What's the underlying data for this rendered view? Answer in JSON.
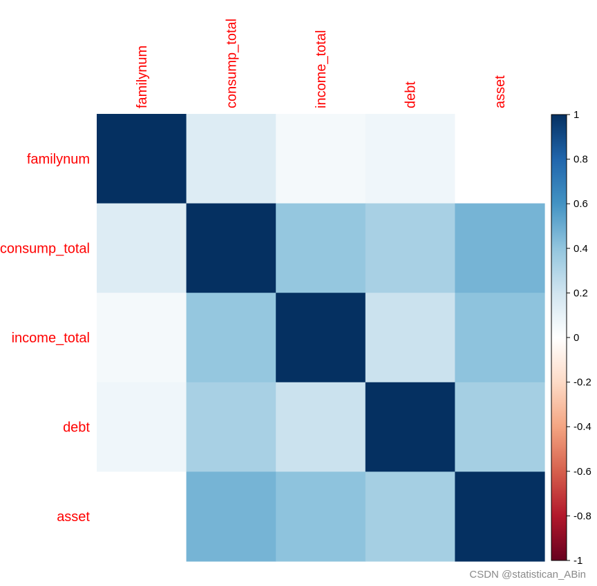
{
  "chart_data": {
    "type": "heatmap",
    "variables": [
      "familynum",
      "consump_total",
      "income_total",
      "debt",
      "asset"
    ],
    "matrix": [
      [
        1.0,
        0.15,
        0.05,
        0.07,
        0.0
      ],
      [
        0.15,
        1.0,
        0.39,
        0.33,
        0.47
      ],
      [
        0.05,
        0.39,
        1.0,
        0.22,
        0.41
      ],
      [
        0.07,
        0.33,
        0.22,
        1.0,
        0.34
      ],
      [
        0.0,
        0.47,
        0.41,
        0.34,
        1.0
      ]
    ],
    "color_scale": {
      "min": -1,
      "max": 1,
      "stops": [
        {
          "value": -1.0,
          "color": "#67001f"
        },
        {
          "value": -0.8,
          "color": "#b2182b"
        },
        {
          "value": -0.6,
          "color": "#d6604d"
        },
        {
          "value": -0.4,
          "color": "#f4a582"
        },
        {
          "value": -0.2,
          "color": "#fddbc7"
        },
        {
          "value": 0.0,
          "color": "#ffffff"
        },
        {
          "value": 0.2,
          "color": "#d1e5f0"
        },
        {
          "value": 0.4,
          "color": "#92c5de"
        },
        {
          "value": 0.6,
          "color": "#4393c3"
        },
        {
          "value": 0.8,
          "color": "#2166ac"
        },
        {
          "value": 1.0,
          "color": "#053061"
        }
      ]
    },
    "colorbar_ticks": [
      "1",
      "0.8",
      "0.6",
      "0.4",
      "0.2",
      "0",
      "-0.2",
      "-0.4",
      "-0.6",
      "-0.8",
      "-1"
    ],
    "colorbar_tick_values": [
      1,
      0.8,
      0.6,
      0.4,
      0.2,
      0,
      -0.2,
      -0.4,
      -0.6,
      -0.8,
      -1
    ],
    "label_color": "#ff0000"
  },
  "watermark": "CSDN @statistican_ABin"
}
